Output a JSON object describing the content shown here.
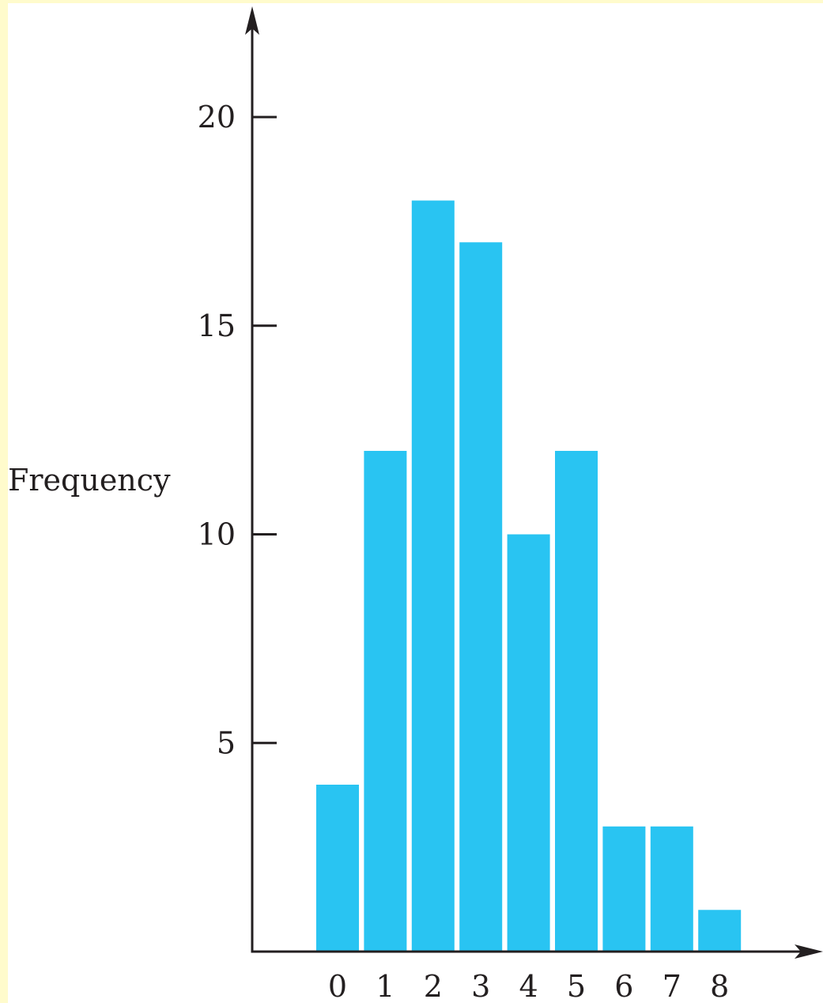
{
  "chart_data": {
    "type": "bar",
    "categories": [
      "0",
      "1",
      "2",
      "3",
      "4",
      "5",
      "6",
      "7",
      "8"
    ],
    "values": [
      4,
      12,
      18,
      17,
      10,
      12,
      3,
      3,
      1
    ],
    "title": "",
    "xlabel": "",
    "ylabel": "Frequency",
    "ylim": [
      0,
      22
    ],
    "yticks": [
      5,
      10,
      15,
      20
    ],
    "grid": false,
    "bar_color": "#29c4f2",
    "axis_color": "#231f20"
  }
}
